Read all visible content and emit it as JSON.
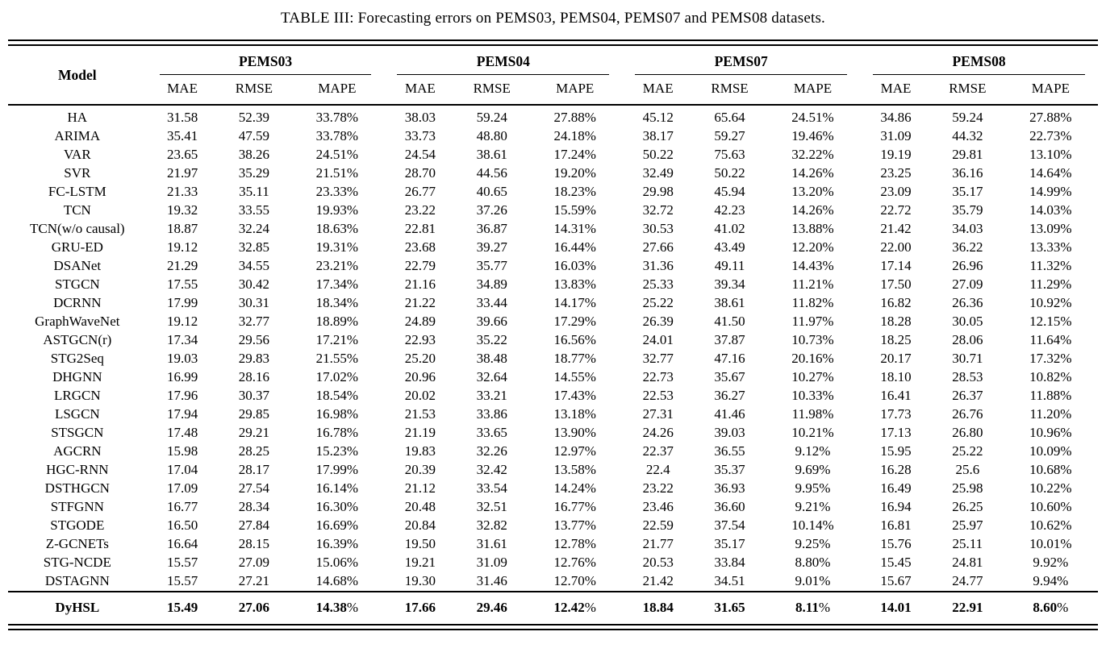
{
  "caption": "TABLE III: Forecasting errors on PEMS03, PEMS04, PEMS07 and PEMS08 datasets.",
  "table": {
    "model_header": "Model",
    "groups": [
      "PEMS03",
      "PEMS04",
      "PEMS07",
      "PEMS08"
    ],
    "metrics": [
      "MAE",
      "RMSE",
      "MAPE"
    ],
    "rows": [
      {
        "model": "HA",
        "values": [
          "31.58",
          "52.39",
          "33.78%",
          "38.03",
          "59.24",
          "27.88%",
          "45.12",
          "65.64",
          "24.51%",
          "34.86",
          "59.24",
          "27.88%"
        ]
      },
      {
        "model": "ARIMA",
        "values": [
          "35.41",
          "47.59",
          "33.78%",
          "33.73",
          "48.80",
          "24.18%",
          "38.17",
          "59.27",
          "19.46%",
          "31.09",
          "44.32",
          "22.73%"
        ]
      },
      {
        "model": "VAR",
        "values": [
          "23.65",
          "38.26",
          "24.51%",
          "24.54",
          "38.61",
          "17.24%",
          "50.22",
          "75.63",
          "32.22%",
          "19.19",
          "29.81",
          "13.10%"
        ]
      },
      {
        "model": "SVR",
        "values": [
          "21.97",
          "35.29",
          "21.51%",
          "28.70",
          "44.56",
          "19.20%",
          "32.49",
          "50.22",
          "14.26%",
          "23.25",
          "36.16",
          "14.64%"
        ]
      },
      {
        "model": "FC-LSTM",
        "values": [
          "21.33",
          "35.11",
          "23.33%",
          "26.77",
          "40.65",
          "18.23%",
          "29.98",
          "45.94",
          "13.20%",
          "23.09",
          "35.17",
          "14.99%"
        ]
      },
      {
        "model": "TCN",
        "values": [
          "19.32",
          "33.55",
          "19.93%",
          "23.22",
          "37.26",
          "15.59%",
          "32.72",
          "42.23",
          "14.26%",
          "22.72",
          "35.79",
          "14.03%"
        ]
      },
      {
        "model": "TCN(w/o causal)",
        "values": [
          "18.87",
          "32.24",
          "18.63%",
          "22.81",
          "36.87",
          "14.31%",
          "30.53",
          "41.02",
          "13.88%",
          "21.42",
          "34.03",
          "13.09%"
        ]
      },
      {
        "model": "GRU-ED",
        "values": [
          "19.12",
          "32.85",
          "19.31%",
          "23.68",
          "39.27",
          "16.44%",
          "27.66",
          "43.49",
          "12.20%",
          "22.00",
          "36.22",
          "13.33%"
        ]
      },
      {
        "model": "DSANet",
        "values": [
          "21.29",
          "34.55",
          "23.21%",
          "22.79",
          "35.77",
          "16.03%",
          "31.36",
          "49.11",
          "14.43%",
          "17.14",
          "26.96",
          "11.32%"
        ]
      },
      {
        "model": "STGCN",
        "values": [
          "17.55",
          "30.42",
          "17.34%",
          "21.16",
          "34.89",
          "13.83%",
          "25.33",
          "39.34",
          "11.21%",
          "17.50",
          "27.09",
          "11.29%"
        ]
      },
      {
        "model": "DCRNN",
        "values": [
          "17.99",
          "30.31",
          "18.34%",
          "21.22",
          "33.44",
          "14.17%",
          "25.22",
          "38.61",
          "11.82%",
          "16.82",
          "26.36",
          "10.92%"
        ]
      },
      {
        "model": "GraphWaveNet",
        "values": [
          "19.12",
          "32.77",
          "18.89%",
          "24.89",
          "39.66",
          "17.29%",
          "26.39",
          "41.50",
          "11.97%",
          "18.28",
          "30.05",
          "12.15%"
        ]
      },
      {
        "model": "ASTGCN(r)",
        "values": [
          "17.34",
          "29.56",
          "17.21%",
          "22.93",
          "35.22",
          "16.56%",
          "24.01",
          "37.87",
          "10.73%",
          "18.25",
          "28.06",
          "11.64%"
        ]
      },
      {
        "model": "STG2Seq",
        "values": [
          "19.03",
          "29.83",
          "21.55%",
          "25.20",
          "38.48",
          "18.77%",
          "32.77",
          "47.16",
          "20.16%",
          "20.17",
          "30.71",
          "17.32%"
        ]
      },
      {
        "model": "DHGNN",
        "values": [
          "16.99",
          "28.16",
          "17.02%",
          "20.96",
          "32.64",
          "14.55%",
          "22.73",
          "35.67",
          "10.27%",
          "18.10",
          "28.53",
          "10.82%"
        ]
      },
      {
        "model": "LRGCN",
        "values": [
          "17.96",
          "30.37",
          "18.54%",
          "20.02",
          "33.21",
          "17.43%",
          "22.53",
          "36.27",
          "10.33%",
          "16.41",
          "26.37",
          "11.88%"
        ]
      },
      {
        "model": "LSGCN",
        "values": [
          "17.94",
          "29.85",
          "16.98%",
          "21.53",
          "33.86",
          "13.18%",
          "27.31",
          "41.46",
          "11.98%",
          "17.73",
          "26.76",
          "11.20%"
        ]
      },
      {
        "model": "STSGCN",
        "values": [
          "17.48",
          "29.21",
          "16.78%",
          "21.19",
          "33.65",
          "13.90%",
          "24.26",
          "39.03",
          "10.21%",
          "17.13",
          "26.80",
          "10.96%"
        ]
      },
      {
        "model": "AGCRN",
        "values": [
          "15.98",
          "28.25",
          "15.23%",
          "19.83",
          "32.26",
          "12.97%",
          "22.37",
          "36.55",
          "9.12%",
          "15.95",
          "25.22",
          "10.09%"
        ]
      },
      {
        "model": "HGC-RNN",
        "values": [
          "17.04",
          "28.17",
          "17.99%",
          "20.39",
          "32.42",
          "13.58%",
          "22.4",
          "35.37",
          "9.69%",
          "16.28",
          "25.6",
          "10.68%"
        ]
      },
      {
        "model": "DSTHGCN",
        "values": [
          "17.09",
          "27.54",
          "16.14%",
          "21.12",
          "33.54",
          "14.24%",
          "23.22",
          "36.93",
          "9.95%",
          "16.49",
          "25.98",
          "10.22%"
        ]
      },
      {
        "model": "STFGNN",
        "values": [
          "16.77",
          "28.34",
          "16.30%",
          "20.48",
          "32.51",
          "16.77%",
          "23.46",
          "36.60",
          "9.21%",
          "16.94",
          "26.25",
          "10.60%"
        ]
      },
      {
        "model": "STGODE",
        "values": [
          "16.50",
          "27.84",
          "16.69%",
          "20.84",
          "32.82",
          "13.77%",
          "22.59",
          "37.54",
          "10.14%",
          "16.81",
          "25.97",
          "10.62%"
        ]
      },
      {
        "model": "Z-GCNETs",
        "values": [
          "16.64",
          "28.15",
          "16.39%",
          "19.50",
          "31.61",
          "12.78%",
          "21.77",
          "35.17",
          "9.25%",
          "15.76",
          "25.11",
          "10.01%"
        ]
      },
      {
        "model": "STG-NCDE",
        "values": [
          "15.57",
          "27.09",
          "15.06%",
          "19.21",
          "31.09",
          "12.76%",
          "20.53",
          "33.84",
          "8.80%",
          "15.45",
          "24.81",
          "9.92%"
        ]
      },
      {
        "model": "DSTAGNN",
        "values": [
          "15.57",
          "27.21",
          "14.68%",
          "19.30",
          "31.46",
          "12.70%",
          "21.42",
          "34.51",
          "9.01%",
          "15.67",
          "24.77",
          "9.94%"
        ]
      }
    ],
    "highlight": {
      "model": "DyHSL",
      "values": [
        "15.49",
        "27.06",
        "14.38%",
        "17.66",
        "29.46",
        "12.42%",
        "18.84",
        "31.65",
        "8.11%",
        "14.01",
        "22.91",
        "8.60%"
      ]
    }
  }
}
